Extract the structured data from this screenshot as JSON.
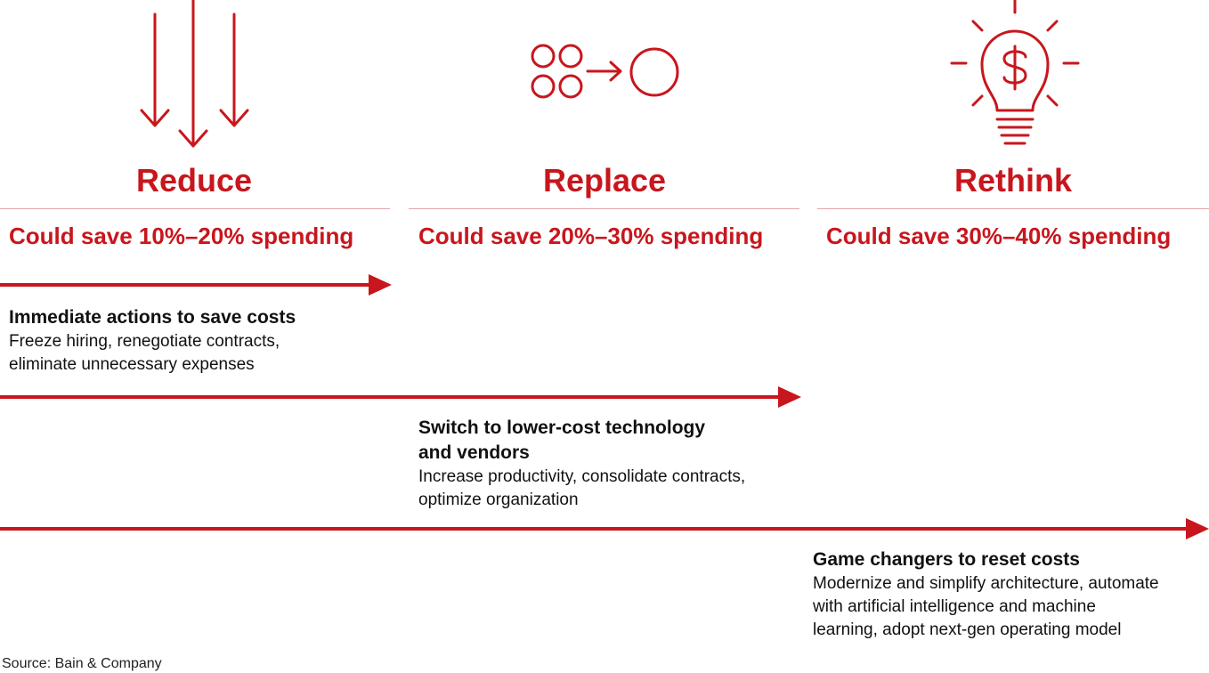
{
  "columns": [
    {
      "icon": "down-arrows-icon",
      "heading": "Reduce",
      "saving": "Could save 10%–20% spending"
    },
    {
      "icon": "consolidate-circles-icon",
      "heading": "Replace",
      "saving": "Could save 20%–30% spending"
    },
    {
      "icon": "lightbulb-dollar-icon",
      "heading": "Rethink",
      "saving": "Could save 30%–40% spending"
    }
  ],
  "actions": [
    {
      "title": "Immediate actions to save costs",
      "description_lines": [
        "Freeze hiring, renegotiate contracts,",
        "eliminate unnecessary expenses"
      ]
    },
    {
      "title_lines": [
        "Switch to lower-cost technology",
        "and vendors"
      ],
      "description_lines": [
        "Increase productivity, consolidate contracts,",
        "optimize organization"
      ]
    },
    {
      "title": "Game changers to reset costs",
      "description_lines": [
        "Modernize and simplify architecture, automate",
        "with artificial intelligence and machine",
        "learning, adopt next-gen operating model"
      ]
    }
  ],
  "source": "Source: Bain & Company",
  "colors": {
    "accent": "#c8161d",
    "divider": "#e6a3a6",
    "text": "#111111"
  }
}
